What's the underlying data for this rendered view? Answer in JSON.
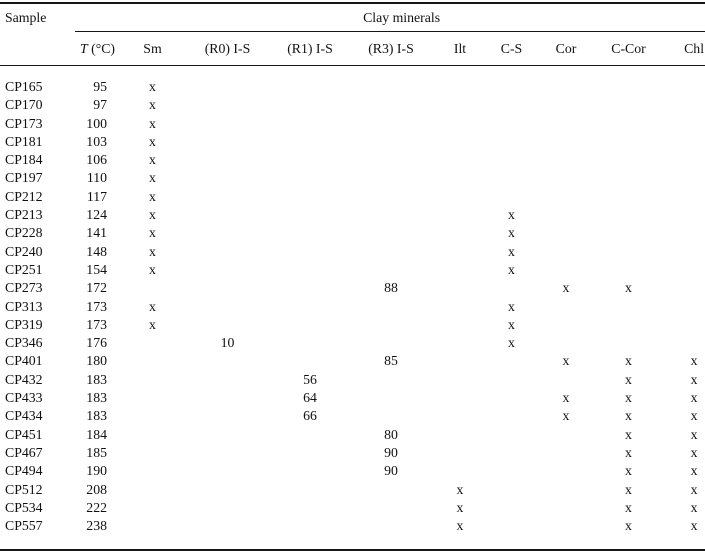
{
  "table": {
    "sample_label": "Sample",
    "spanner_label": "Clay minerals",
    "temp_header": {
      "italic_part": "T",
      "rest_part": " (°C)"
    },
    "mineral_columns": [
      "Sm",
      "(R0) I-S",
      "(R1) I-S",
      "(R3) I-S",
      "Ilt",
      "C-S",
      "Cor",
      "C-Cor",
      "Chl"
    ],
    "rows": [
      {
        "sample": "CP165",
        "t": "95",
        "cells": [
          "x",
          "",
          "",
          "",
          "",
          "",
          "",
          "",
          ""
        ]
      },
      {
        "sample": "CP170",
        "t": "97",
        "cells": [
          "x",
          "",
          "",
          "",
          "",
          "",
          "",
          "",
          ""
        ]
      },
      {
        "sample": "CP173",
        "t": "100",
        "cells": [
          "x",
          "",
          "",
          "",
          "",
          "",
          "",
          "",
          ""
        ]
      },
      {
        "sample": "CP181",
        "t": "103",
        "cells": [
          "x",
          "",
          "",
          "",
          "",
          "",
          "",
          "",
          ""
        ]
      },
      {
        "sample": "CP184",
        "t": "106",
        "cells": [
          "x",
          "",
          "",
          "",
          "",
          "",
          "",
          "",
          ""
        ]
      },
      {
        "sample": "CP197",
        "t": "110",
        "cells": [
          "x",
          "",
          "",
          "",
          "",
          "",
          "",
          "",
          ""
        ]
      },
      {
        "sample": "CP212",
        "t": "117",
        "cells": [
          "x",
          "",
          "",
          "",
          "",
          "",
          "",
          "",
          ""
        ]
      },
      {
        "sample": "CP213",
        "t": "124",
        "cells": [
          "x",
          "",
          "",
          "",
          "",
          "x",
          "",
          "",
          ""
        ]
      },
      {
        "sample": "CP228",
        "t": "141",
        "cells": [
          "x",
          "",
          "",
          "",
          "",
          "x",
          "",
          "",
          ""
        ]
      },
      {
        "sample": "CP240",
        "t": "148",
        "cells": [
          "x",
          "",
          "",
          "",
          "",
          "x",
          "",
          "",
          ""
        ]
      },
      {
        "sample": "CP251",
        "t": "154",
        "cells": [
          "x",
          "",
          "",
          "",
          "",
          "x",
          "",
          "",
          ""
        ]
      },
      {
        "sample": "CP273",
        "t": "172",
        "cells": [
          "",
          "",
          "",
          "88",
          "",
          "",
          "x",
          "x",
          ""
        ]
      },
      {
        "sample": "CP313",
        "t": "173",
        "cells": [
          "x",
          "",
          "",
          "",
          "",
          "x",
          "",
          "",
          ""
        ]
      },
      {
        "sample": "CP319",
        "t": "173",
        "cells": [
          "x",
          "",
          "",
          "",
          "",
          "x",
          "",
          "",
          ""
        ]
      },
      {
        "sample": "CP346",
        "t": "176",
        "cells": [
          "",
          "10",
          "",
          "",
          "",
          "x",
          "",
          "",
          ""
        ]
      },
      {
        "sample": "CP401",
        "t": "180",
        "cells": [
          "",
          "",
          "",
          "85",
          "",
          "",
          "x",
          "x",
          "x"
        ]
      },
      {
        "sample": "CP432",
        "t": "183",
        "cells": [
          "",
          "",
          "56",
          "",
          "",
          "",
          "",
          "x",
          "x"
        ]
      },
      {
        "sample": "CP433",
        "t": "183",
        "cells": [
          "",
          "",
          "64",
          "",
          "",
          "",
          "x",
          "x",
          "x"
        ]
      },
      {
        "sample": "CP434",
        "t": "183",
        "cells": [
          "",
          "",
          "66",
          "",
          "",
          "",
          "x",
          "x",
          "x"
        ]
      },
      {
        "sample": "CP451",
        "t": "184",
        "cells": [
          "",
          "",
          "",
          "80",
          "",
          "",
          "",
          "x",
          "x"
        ]
      },
      {
        "sample": "CP467",
        "t": "185",
        "cells": [
          "",
          "",
          "",
          "90",
          "",
          "",
          "",
          "x",
          "x"
        ]
      },
      {
        "sample": "CP494",
        "t": "190",
        "cells": [
          "",
          "",
          "",
          "90",
          "",
          "",
          "",
          "x",
          "x"
        ]
      },
      {
        "sample": "CP512",
        "t": "208",
        "cells": [
          "",
          "",
          "",
          "",
          "x",
          "",
          "",
          "x",
          "x"
        ]
      },
      {
        "sample": "CP534",
        "t": "222",
        "cells": [
          "",
          "",
          "",
          "",
          "x",
          "",
          "",
          "x",
          "x"
        ]
      },
      {
        "sample": "CP557",
        "t": "238",
        "cells": [
          "",
          "",
          "",
          "",
          "x",
          "",
          "",
          "x",
          "x"
        ]
      }
    ]
  }
}
